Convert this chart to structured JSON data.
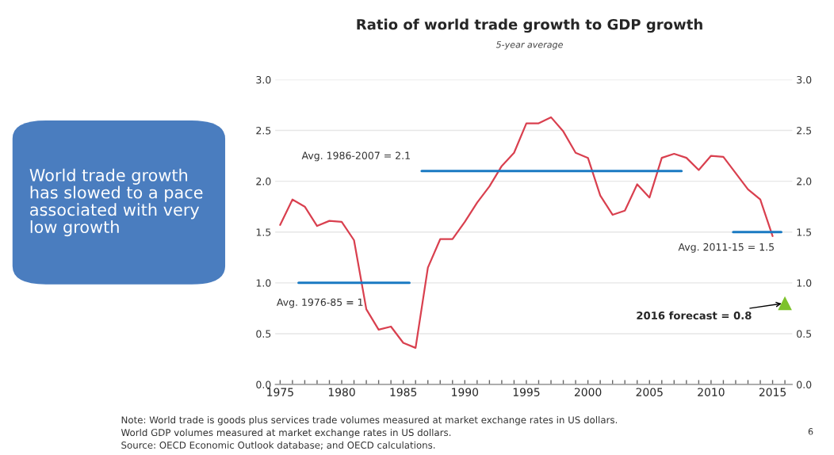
{
  "chart_data": {
    "type": "line",
    "title": "Ratio of world trade growth to GDP growth",
    "subtitle": "5-year average",
    "xlim": [
      1974.6,
      2016.6
    ],
    "xticks": [
      1975,
      {
        "value": 1976,
        "label": null
      },
      {
        "value": 1977,
        "label": null
      },
      {
        "value": 1978,
        "label": null
      },
      {
        "value": 1979,
        "label": null
      },
      1980,
      {
        "value": 1981,
        "label": null
      },
      {
        "value": 1982,
        "label": null
      },
      {
        "value": 1983,
        "label": null
      },
      {
        "value": 1984,
        "label": null
      },
      1985,
      {
        "value": 1986,
        "label": null
      },
      {
        "value": 1987,
        "label": null
      },
      {
        "value": 1988,
        "label": null
      },
      {
        "value": 1989,
        "label": null
      },
      1990,
      {
        "value": 1991,
        "label": null
      },
      {
        "value": 1992,
        "label": null
      },
      {
        "value": 1993,
        "label": null
      },
      {
        "value": 1994,
        "label": null
      },
      1995,
      {
        "value": 1996,
        "label": null
      },
      {
        "value": 1997,
        "label": null
      },
      {
        "value": 1998,
        "label": null
      },
      {
        "value": 1999,
        "label": null
      },
      2000,
      {
        "value": 2001,
        "label": null
      },
      {
        "value": 2002,
        "label": null
      },
      {
        "value": 2003,
        "label": null
      },
      {
        "value": 2004,
        "label": null
      },
      2005,
      {
        "value": 2006,
        "label": null
      },
      {
        "value": 2007,
        "label": null
      },
      {
        "value": 2008,
        "label": null
      },
      {
        "value": 2009,
        "label": null
      },
      2010,
      {
        "value": 2011,
        "label": null
      },
      {
        "value": 2012,
        "label": null
      },
      {
        "value": 2013,
        "label": null
      },
      {
        "value": 2014,
        "label": null
      },
      2015,
      {
        "value": 2016,
        "label": null
      }
    ],
    "ylim": [
      0,
      3
    ],
    "yticks": [
      {
        "value": 0,
        "label": "0.0"
      },
      0.5,
      {
        "value": 1,
        "label": "1.0"
      },
      1.5,
      {
        "value": 2,
        "label": "2.0"
      },
      2.5,
      {
        "value": 3,
        "label": "3.0"
      }
    ],
    "y2lim": [
      0,
      3
    ],
    "y2ticks": [
      {
        "value": 0,
        "label": "0.0"
      },
      0.5,
      {
        "value": 1,
        "label": "1.0"
      },
      1.5,
      {
        "value": 2,
        "label": "2.0"
      },
      2.5,
      {
        "value": 3,
        "label": "3.0"
      }
    ],
    "grid": "y",
    "series": [
      {
        "color": "#d9404f",
        "x": [
          1975,
          1976,
          1977,
          1978,
          1979,
          1980,
          1981,
          1982,
          1983,
          1984,
          1985,
          1986,
          1987,
          1988,
          1989,
          1990,
          1991,
          1992,
          1993,
          1994,
          1995,
          1996,
          1997,
          1998,
          1999,
          2000,
          2001,
          2002,
          2003,
          2004,
          2005,
          2006,
          2007,
          2008,
          2009,
          2010,
          2011,
          2012,
          2013,
          2014,
          2015
        ],
        "values": [
          1.57,
          1.82,
          1.75,
          1.56,
          1.61,
          1.6,
          1.42,
          0.74,
          0.54,
          0.57,
          0.41,
          0.36,
          1.15,
          1.43,
          1.43,
          1.6,
          1.79,
          1.95,
          2.15,
          2.28,
          2.57,
          2.57,
          2.63,
          2.49,
          2.28,
          2.23,
          1.86,
          1.67,
          1.71,
          1.97,
          1.84,
          2.23,
          2.27,
          2.23,
          2.11,
          2.25,
          2.24,
          2.08,
          1.92,
          1.82,
          1.46
        ]
      },
      {
        "type": "line",
        "color": "#1a7ac2",
        "x": [
          1976.5,
          1985.5
        ],
        "values": [
          1,
          1
        ]
      },
      {
        "type": "line",
        "color": "#1a7ac2",
        "x": [
          1986.5,
          2007.6
        ],
        "values": [
          2.1,
          2.1
        ]
      },
      {
        "type": "line",
        "color": "#1a7ac2",
        "x": [
          2011.8,
          2015.7
        ],
        "values": [
          1.5,
          1.5
        ]
      },
      {
        "type": "scatter",
        "color": "#7dc22b",
        "marker": "triangle",
        "x": [
          2016
        ],
        "values": [
          0.8
        ]
      }
    ],
    "annotations": [
      {
        "text": "Avg. 1976-85 = 1",
        "x": 1976.5,
        "y": 1
      },
      {
        "text": "Avg. 1986-2007 = 2.1",
        "x": 1986.5,
        "y": 2.1
      },
      {
        "text": "Avg. 2011-15 = 1.5",
        "x": 2015.7,
        "y": 1.5
      },
      {
        "text": "2016 forecast = 0.8",
        "x": 2016,
        "y": 0.8
      },
      "World trade growth has slowed to a pace associated with very low growth",
      "Note: World trade is goods plus services trade volumes measured at market exchange rates in US dollars.\nWorld GDP volumes measured at market exchange rates in US dollars.\nSource: OECD Economic Outlook database; and OECD calculations.",
      "6"
    ]
  }
}
